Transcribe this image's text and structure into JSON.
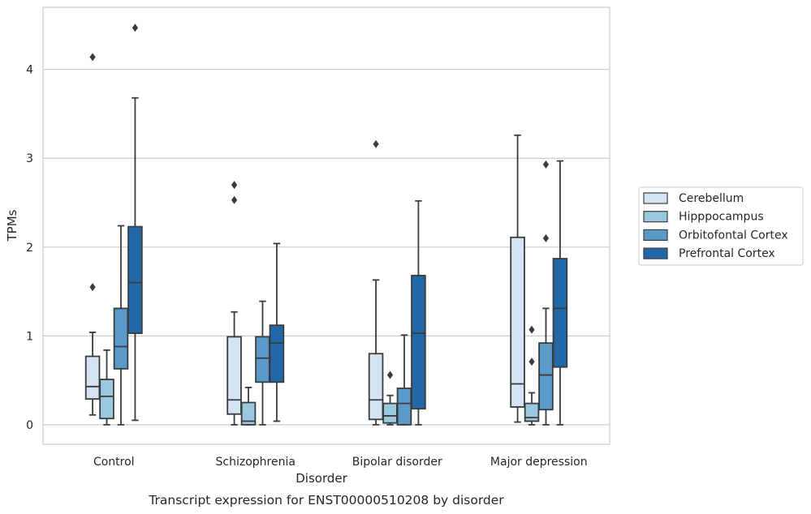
{
  "chart_data": {
    "type": "box",
    "xlabel": "Disorder",
    "ylabel": "TPMs",
    "caption": "Transcript expression for ENST00000510208 by disorder",
    "ylim": [
      -0.22,
      4.7
    ],
    "yticks": [
      0,
      1,
      2,
      3,
      4
    ],
    "grid": true,
    "legend_position": "right",
    "categories": [
      "Control",
      "Schizophrenia",
      "Bipolar disorder",
      "Major depression"
    ],
    "series": [
      {
        "name": "Cerebellum",
        "color": "#d4e4f2",
        "boxes": [
          {
            "whisker_low": 0.11,
            "q1": 0.29,
            "median": 0.43,
            "q3": 0.77,
            "whisker_high": 1.04,
            "outliers": [
              1.55,
              4.14
            ]
          },
          {
            "whisker_low": 0.0,
            "q1": 0.12,
            "median": 0.28,
            "q3": 0.99,
            "whisker_high": 1.27,
            "outliers": [
              2.53,
              2.7
            ]
          },
          {
            "whisker_low": 0.0,
            "q1": 0.06,
            "median": 0.28,
            "q3": 0.8,
            "whisker_high": 1.63,
            "outliers": [
              3.16
            ]
          },
          {
            "whisker_low": 0.03,
            "q1": 0.2,
            "median": 0.46,
            "q3": 2.11,
            "whisker_high": 3.26,
            "outliers": []
          }
        ]
      },
      {
        "name": "Hipppocampus",
        "color": "#9ac8e0",
        "boxes": [
          {
            "whisker_low": 0.0,
            "q1": 0.07,
            "median": 0.32,
            "q3": 0.51,
            "whisker_high": 0.84,
            "outliers": []
          },
          {
            "whisker_low": 0.0,
            "q1": 0.0,
            "median": 0.04,
            "q3": 0.25,
            "whisker_high": 0.42,
            "outliers": []
          },
          {
            "whisker_low": 0.0,
            "q1": 0.02,
            "median": 0.1,
            "q3": 0.24,
            "whisker_high": 0.33,
            "outliers": [
              0.56
            ]
          },
          {
            "whisker_low": 0.0,
            "q1": 0.04,
            "median": 0.08,
            "q3": 0.24,
            "whisker_high": 0.36,
            "outliers": [
              0.71,
              1.07
            ]
          }
        ]
      },
      {
        "name": "Orbitofontal Cortex",
        "color": "#5a9ac8",
        "boxes": [
          {
            "whisker_low": 0.0,
            "q1": 0.63,
            "median": 0.88,
            "q3": 1.31,
            "whisker_high": 2.24,
            "outliers": []
          },
          {
            "whisker_low": 0.0,
            "q1": 0.48,
            "median": 0.75,
            "q3": 0.99,
            "whisker_high": 1.39,
            "outliers": []
          },
          {
            "whisker_low": 0.0,
            "q1": 0.0,
            "median": 0.24,
            "q3": 0.41,
            "whisker_high": 1.01,
            "outliers": []
          },
          {
            "whisker_low": 0.0,
            "q1": 0.17,
            "median": 0.56,
            "q3": 0.92,
            "whisker_high": 1.31,
            "outliers": [
              2.1,
              2.93
            ]
          }
        ]
      },
      {
        "name": "Prefrontal Cortex",
        "color": "#2268a8",
        "boxes": [
          {
            "whisker_low": 0.05,
            "q1": 1.03,
            "median": 1.6,
            "q3": 2.23,
            "whisker_high": 3.68,
            "outliers": [
              4.47
            ]
          },
          {
            "whisker_low": 0.04,
            "q1": 0.48,
            "median": 0.92,
            "q3": 1.12,
            "whisker_high": 2.04,
            "outliers": []
          },
          {
            "whisker_low": 0.0,
            "q1": 0.18,
            "median": 1.03,
            "q3": 1.68,
            "whisker_high": 2.52,
            "outliers": []
          },
          {
            "whisker_low": 0.0,
            "q1": 0.65,
            "median": 1.31,
            "q3": 1.87,
            "whisker_high": 2.97,
            "outliers": []
          }
        ]
      }
    ]
  }
}
